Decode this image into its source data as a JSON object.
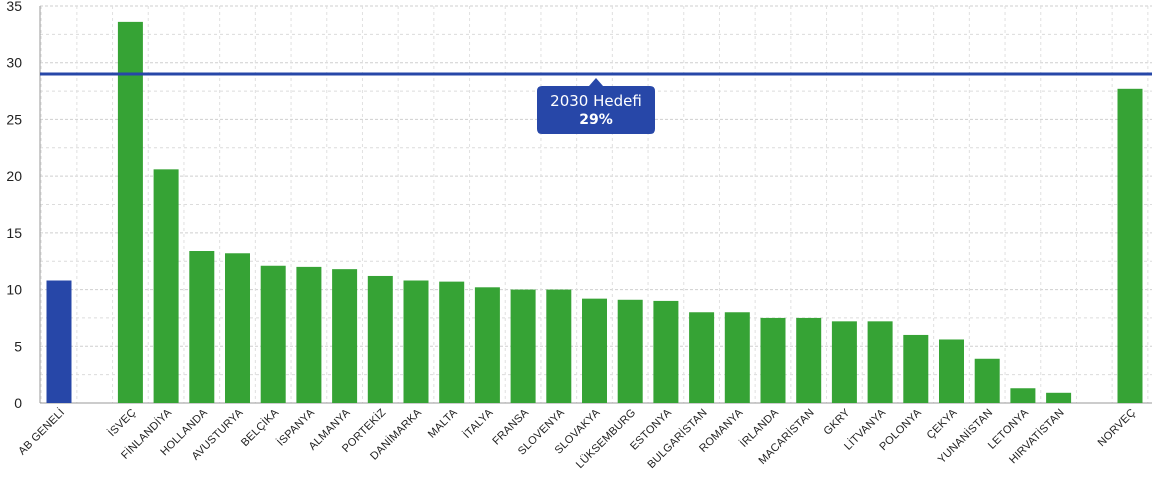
{
  "chart_data": {
    "type": "bar",
    "title": "",
    "xlabel": "",
    "ylabel": "",
    "ylim": [
      0,
      35
    ],
    "yticks": [
      0,
      5,
      10,
      15,
      20,
      25,
      30,
      35
    ],
    "grid": true,
    "categories": [
      "AB GENELİ",
      "İSVEÇ",
      "FİNLANDİYA",
      "HOLLANDA",
      "AVUSTURYA",
      "BELÇİKA",
      "İSPANYA",
      "ALMANYA",
      "PORTEKİZ",
      "DANİMARKA",
      "MALTA",
      "İTALYA",
      "FRANSA",
      "SLOVENYA",
      "SLOVAKYA",
      "LÜKSEMBURG",
      "ESTONYA",
      "BULGARİSTAN",
      "ROMANYA",
      "İRLANDA",
      "MACARİSTAN",
      "GKRY",
      "LİTVANYA",
      "POLONYA",
      "ÇEKYA",
      "YUNANİSTAN",
      "LETONYA",
      "HIRVATİSTAN",
      "NORVEÇ"
    ],
    "values": [
      10.8,
      33.6,
      20.6,
      13.4,
      13.2,
      12.1,
      12.0,
      11.8,
      11.2,
      10.8,
      10.7,
      10.2,
      10.0,
      10.0,
      9.2,
      9.1,
      9.0,
      8.0,
      8.0,
      7.5,
      7.5,
      7.2,
      7.2,
      6.0,
      5.6,
      3.9,
      1.3,
      0.9,
      27.7
    ],
    "bar_colors": {
      "AB GENELİ": "#2747a8"
    },
    "default_bar_color": "#36a335",
    "target_line": {
      "value": 29,
      "color": "#2747a8",
      "label": "2030 Hedefi",
      "value_label": "29%"
    },
    "gap_before": [
      "İSVEÇ",
      "NORVEÇ"
    ]
  }
}
